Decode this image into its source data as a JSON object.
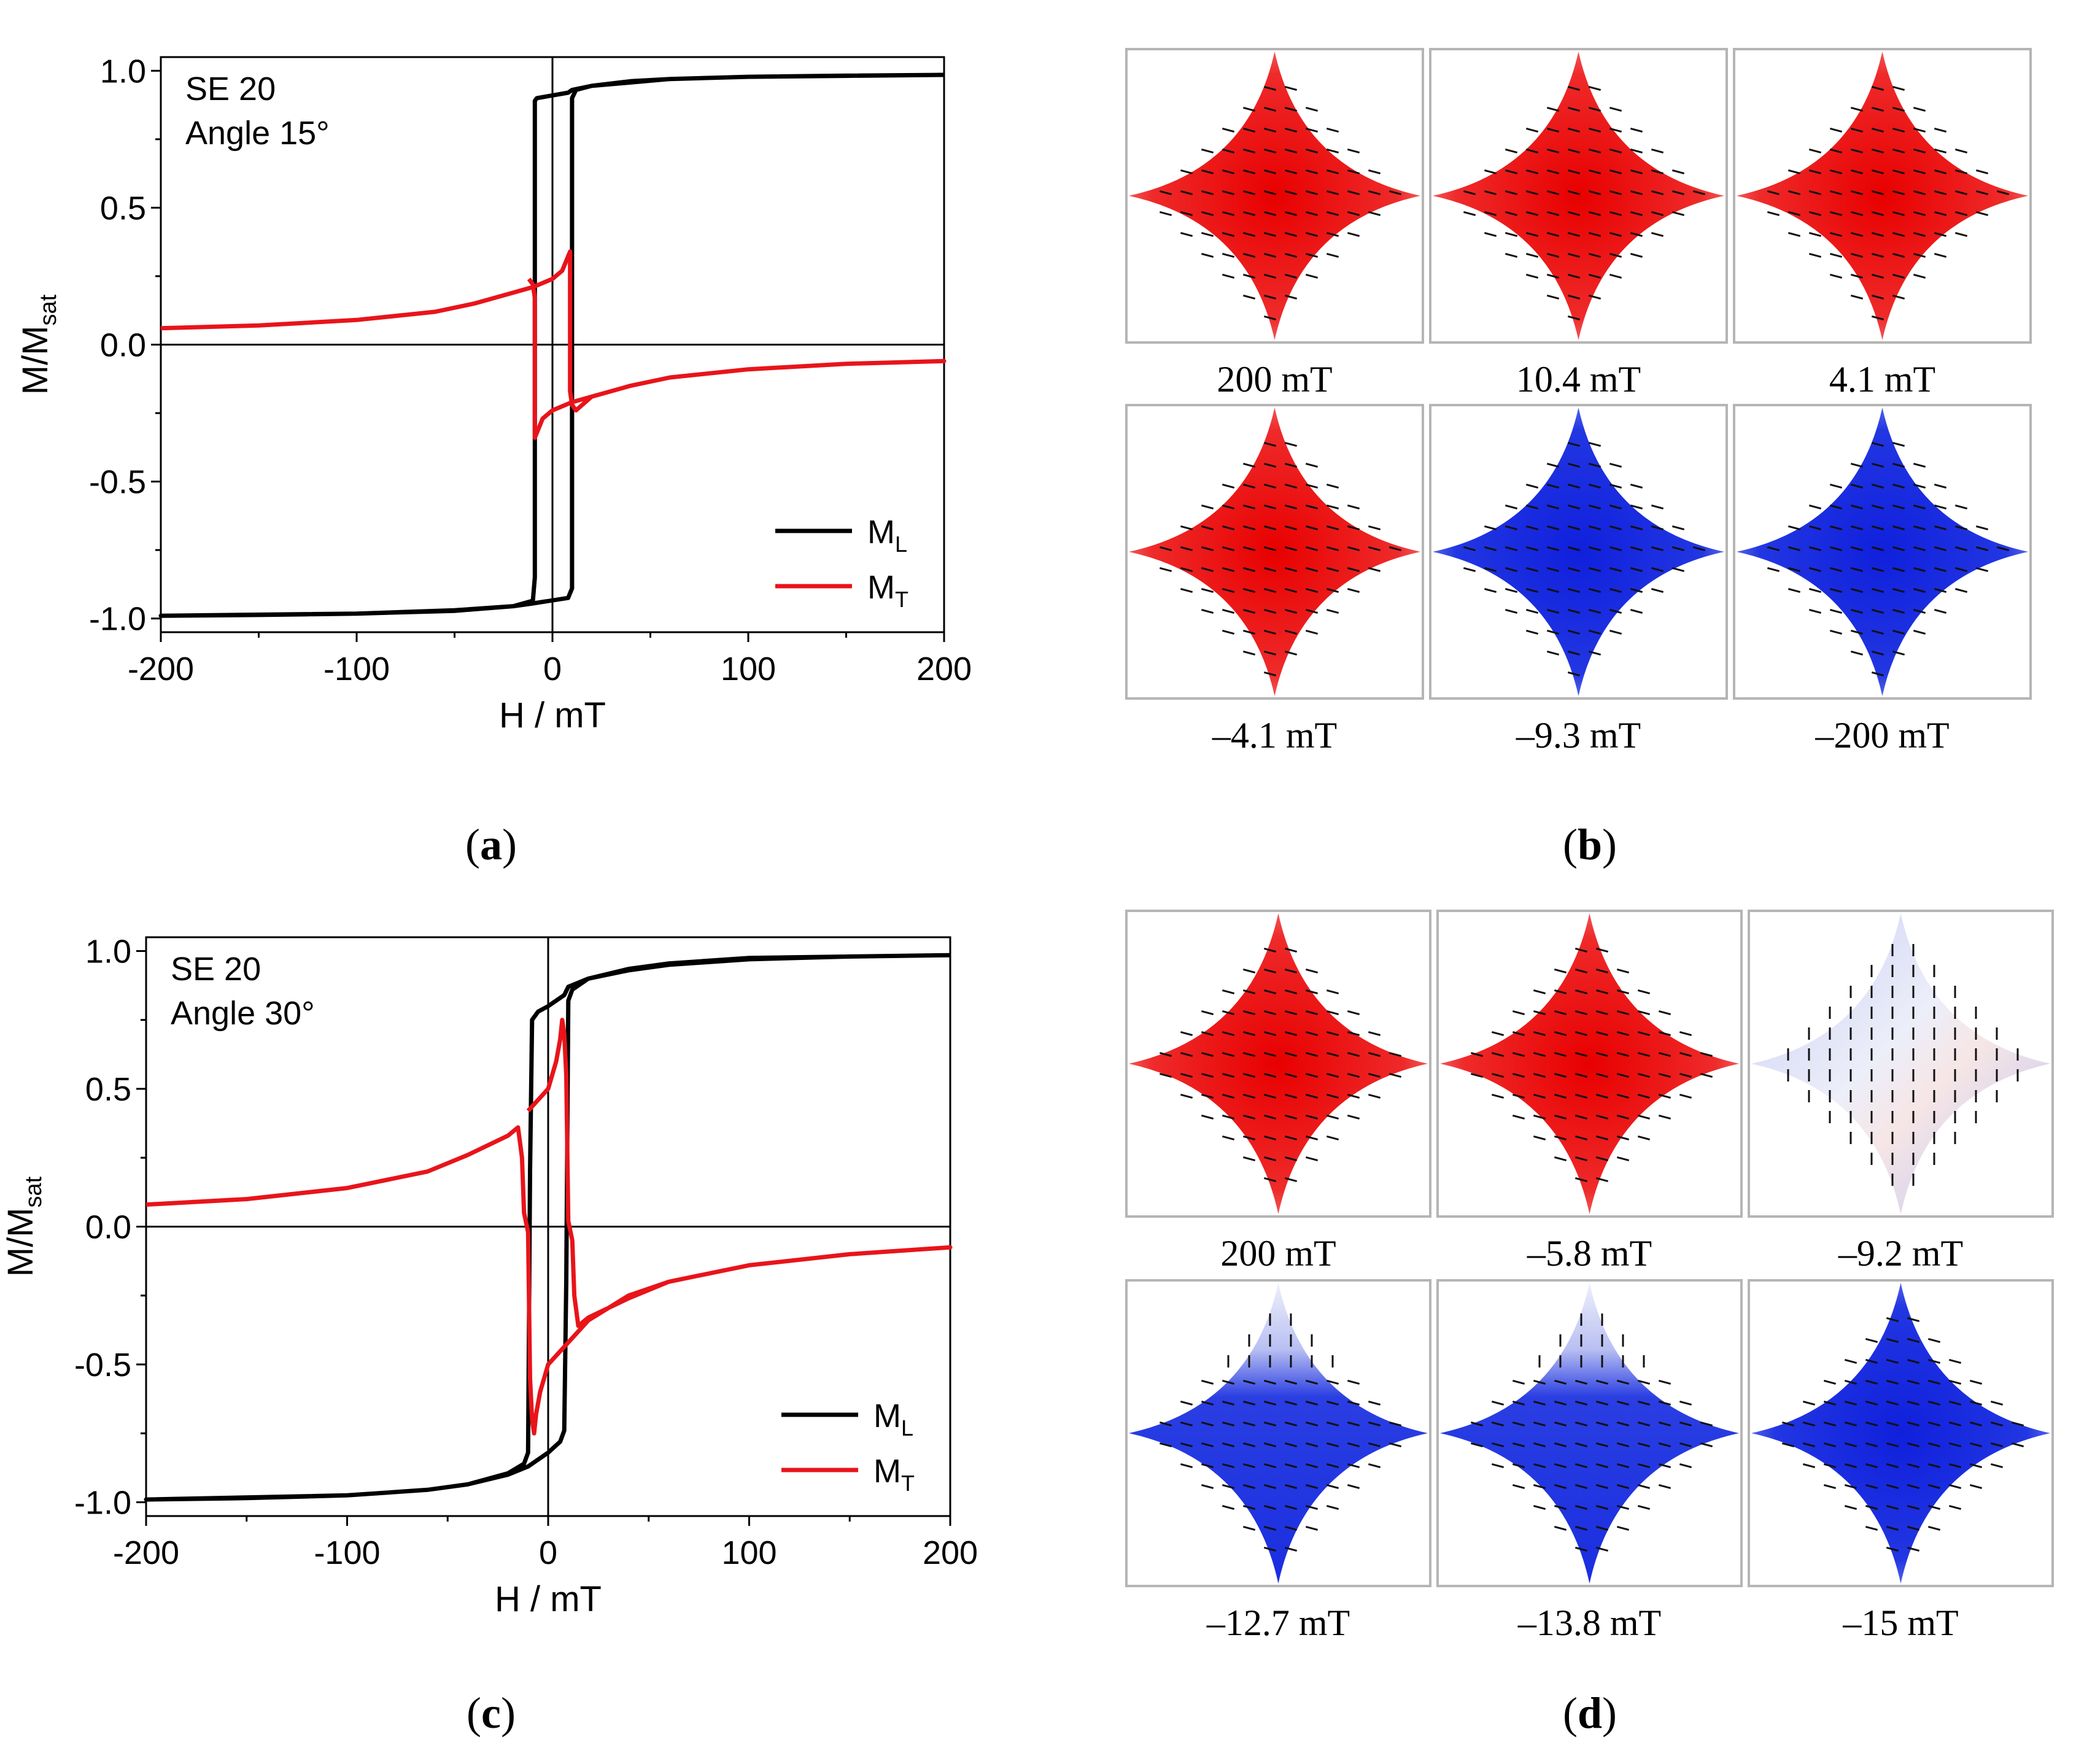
{
  "panels": {
    "a": {
      "letter": "a",
      "chart_data": {
        "type": "line",
        "title": "",
        "xlabel": "H / mT",
        "ylabel_main": "M/M",
        "ylabel_sub": "sat",
        "xlim": [
          -200,
          200
        ],
        "ylim": [
          -1.05,
          1.05
        ],
        "xticks": [
          -200,
          -100,
          0,
          100,
          200
        ],
        "xtick_labels": [
          "-200",
          "-100",
          "0",
          "100",
          "200"
        ],
        "yticks": [
          1.0,
          0.5,
          0.0,
          -0.5,
          -1.0
        ],
        "ytick_labels": [
          "1.0",
          "0.5",
          "0.0",
          "-0.5",
          "-1.0"
        ],
        "annotations": [
          "SE 20",
          "Angle 15°"
        ],
        "legend": [
          {
            "main": "M",
            "sub": "L",
            "color": "#000000"
          },
          {
            "main": "M",
            "sub": "T",
            "color": "#e8141a"
          }
        ],
        "series": [
          {
            "name": "ML",
            "color": "#000000",
            "points": [
              [
                200,
                0.985
              ],
              [
                150,
                0.982
              ],
              [
                100,
                0.978
              ],
              [
                60,
                0.97
              ],
              [
                40,
                0.962
              ],
              [
                20,
                0.945
              ],
              [
                10,
                0.93
              ],
              [
                8,
                0.92
              ],
              [
                -8,
                0.9
              ],
              [
                -9,
                0.89
              ],
              [
                -9,
                0.2
              ],
              [
                -9,
                -0.85
              ],
              [
                -10,
                -0.935
              ],
              [
                -20,
                -0.955
              ],
              [
                -50,
                -0.97
              ],
              [
                -100,
                -0.982
              ],
              [
                -200,
                -0.99
              ],
              [
                -150,
                -0.987
              ],
              [
                -100,
                -0.982
              ],
              [
                -50,
                -0.972
              ],
              [
                -20,
                -0.955
              ],
              [
                -10,
                -0.945
              ],
              [
                8,
                -0.925
              ],
              [
                10,
                -0.89
              ],
              [
                10,
                -0.2
              ],
              [
                10,
                0.9
              ],
              [
                12,
                0.93
              ],
              [
                20,
                0.945
              ],
              [
                60,
                0.97
              ],
              [
                100,
                0.978
              ],
              [
                200,
                0.985
              ]
            ]
          },
          {
            "name": "MT",
            "color": "#e8141a",
            "points": [
              [
                -200,
                0.06
              ],
              [
                -150,
                0.07
              ],
              [
                -100,
                0.09
              ],
              [
                -60,
                0.12
              ],
              [
                -40,
                0.15
              ],
              [
                -20,
                0.19
              ],
              [
                -10,
                0.21
              ],
              [
                0,
                0.24
              ],
              [
                5,
                0.27
              ],
              [
                9,
                0.34
              ],
              [
                9,
                -0.17
              ],
              [
                10,
                -0.22
              ],
              [
                12,
                -0.24
              ],
              [
                20,
                -0.19
              ],
              [
                40,
                -0.15
              ],
              [
                60,
                -0.12
              ],
              [
                100,
                -0.09
              ],
              [
                150,
                -0.07
              ],
              [
                200,
                -0.06
              ],
              [
                150,
                -0.07
              ],
              [
                100,
                -0.09
              ],
              [
                60,
                -0.12
              ],
              [
                40,
                -0.15
              ],
              [
                20,
                -0.19
              ],
              [
                10,
                -0.21
              ],
              [
                0,
                -0.24
              ],
              [
                -5,
                -0.27
              ],
              [
                -9,
                -0.34
              ],
              [
                -9,
                0.17
              ],
              [
                -10,
                0.22
              ],
              [
                -12,
                0.24
              ]
            ]
          }
        ],
        "zero_lines": {
          "x": 0,
          "y": 0
        }
      }
    },
    "b": {
      "letter": "b",
      "tiles": [
        {
          "label": "200 mT",
          "state": "red"
        },
        {
          "label": "10.4 mT",
          "state": "red"
        },
        {
          "label": "4.1 mT",
          "state": "red"
        },
        {
          "label": "–4.1 mT",
          "state": "red"
        },
        {
          "label": "–9.3 mT",
          "state": "blue"
        },
        {
          "label": "–200 mT",
          "state": "blue"
        }
      ]
    },
    "c": {
      "letter": "c",
      "chart_data": {
        "type": "line",
        "title": "",
        "xlabel": "H / mT",
        "ylabel_main": "M/M",
        "ylabel_sub": "sat",
        "xlim": [
          -200,
          200
        ],
        "ylim": [
          -1.05,
          1.05
        ],
        "xticks": [
          -200,
          -100,
          0,
          100,
          200
        ],
        "xtick_labels": [
          "-200",
          "-100",
          "0",
          "100",
          "200"
        ],
        "yticks": [
          1.0,
          0.5,
          0.0,
          -0.5,
          -1.0
        ],
        "ytick_labels": [
          "1.0",
          "0.5",
          "0.0",
          "-0.5",
          "-1.0"
        ],
        "annotations": [
          "SE 20",
          "Angle 30°"
        ],
        "legend": [
          {
            "main": "M",
            "sub": "L",
            "color": "#000000"
          },
          {
            "main": "M",
            "sub": "T",
            "color": "#e8141a"
          }
        ],
        "series": [
          {
            "name": "ML",
            "color": "#000000",
            "points": [
              [
                200,
                0.985
              ],
              [
                150,
                0.98
              ],
              [
                100,
                0.97
              ],
              [
                60,
                0.95
              ],
              [
                40,
                0.93
              ],
              [
                20,
                0.9
              ],
              [
                10,
                0.87
              ],
              [
                8,
                0.84
              ],
              [
                0,
                0.8
              ],
              [
                -5,
                0.78
              ],
              [
                -8,
                0.75
              ],
              [
                -9,
                0.2
              ],
              [
                -10,
                -0.82
              ],
              [
                -12,
                -0.86
              ],
              [
                -20,
                -0.895
              ],
              [
                -40,
                -0.935
              ],
              [
                -60,
                -0.955
              ],
              [
                -100,
                -0.975
              ],
              [
                -200,
                -0.99
              ],
              [
                -150,
                -0.985
              ],
              [
                -100,
                -0.975
              ],
              [
                -60,
                -0.955
              ],
              [
                -40,
                -0.935
              ],
              [
                -20,
                -0.9
              ],
              [
                -10,
                -0.87
              ],
              [
                0,
                -0.82
              ],
              [
                6,
                -0.78
              ],
              [
                8,
                -0.74
              ],
              [
                9,
                -0.2
              ],
              [
                10,
                0.82
              ],
              [
                12,
                0.86
              ],
              [
                20,
                0.9
              ],
              [
                40,
                0.935
              ],
              [
                60,
                0.955
              ],
              [
                100,
                0.975
              ],
              [
                200,
                0.985
              ]
            ]
          },
          {
            "name": "MT",
            "color": "#e8141a",
            "points": [
              [
                -200,
                0.08
              ],
              [
                -150,
                0.1
              ],
              [
                -100,
                0.14
              ],
              [
                -60,
                0.2
              ],
              [
                -40,
                0.26
              ],
              [
                -20,
                0.33
              ],
              [
                -15,
                0.36
              ],
              [
                -13,
                0.25
              ],
              [
                -12,
                0.05
              ],
              [
                -10,
                -0.02
              ],
              [
                -9,
                -0.55
              ],
              [
                -8,
                -0.7
              ],
              [
                -7,
                -0.75
              ],
              [
                -6,
                -0.68
              ],
              [
                -4,
                -0.6
              ],
              [
                0,
                -0.5
              ],
              [
                10,
                -0.42
              ],
              [
                20,
                -0.34
              ],
              [
                40,
                -0.25
              ],
              [
                60,
                -0.2
              ],
              [
                100,
                -0.14
              ],
              [
                150,
                -0.1
              ],
              [
                200,
                -0.075
              ],
              [
                150,
                -0.1
              ],
              [
                100,
                -0.14
              ],
              [
                60,
                -0.2
              ],
              [
                40,
                -0.26
              ],
              [
                20,
                -0.33
              ],
              [
                15,
                -0.36
              ],
              [
                13,
                -0.25
              ],
              [
                12,
                -0.05
              ],
              [
                10,
                0.02
              ],
              [
                9,
                0.55
              ],
              [
                8,
                0.7
              ],
              [
                7,
                0.75
              ],
              [
                6,
                0.68
              ],
              [
                4,
                0.6
              ],
              [
                0,
                0.5
              ],
              [
                -10,
                0.42
              ]
            ]
          }
        ],
        "zero_lines": {
          "x": 0,
          "y": 0
        }
      }
    },
    "d": {
      "letter": "d",
      "tiles": [
        {
          "label": "200 mT",
          "state": "red"
        },
        {
          "label": "–5.8 mT",
          "state": "red"
        },
        {
          "label": "–9.2 mT",
          "state": "mixed"
        },
        {
          "label": "–12.7 mT",
          "state": "blue-partial"
        },
        {
          "label": "–13.8 mT",
          "state": "blue-partial"
        },
        {
          "label": "–15 mT",
          "state": "blue"
        }
      ]
    }
  },
  "colors": {
    "red": "#ec1c1c",
    "blue": "#1a2ee0",
    "black": "#000000",
    "ml": "#000000",
    "mt": "#e8141a"
  }
}
